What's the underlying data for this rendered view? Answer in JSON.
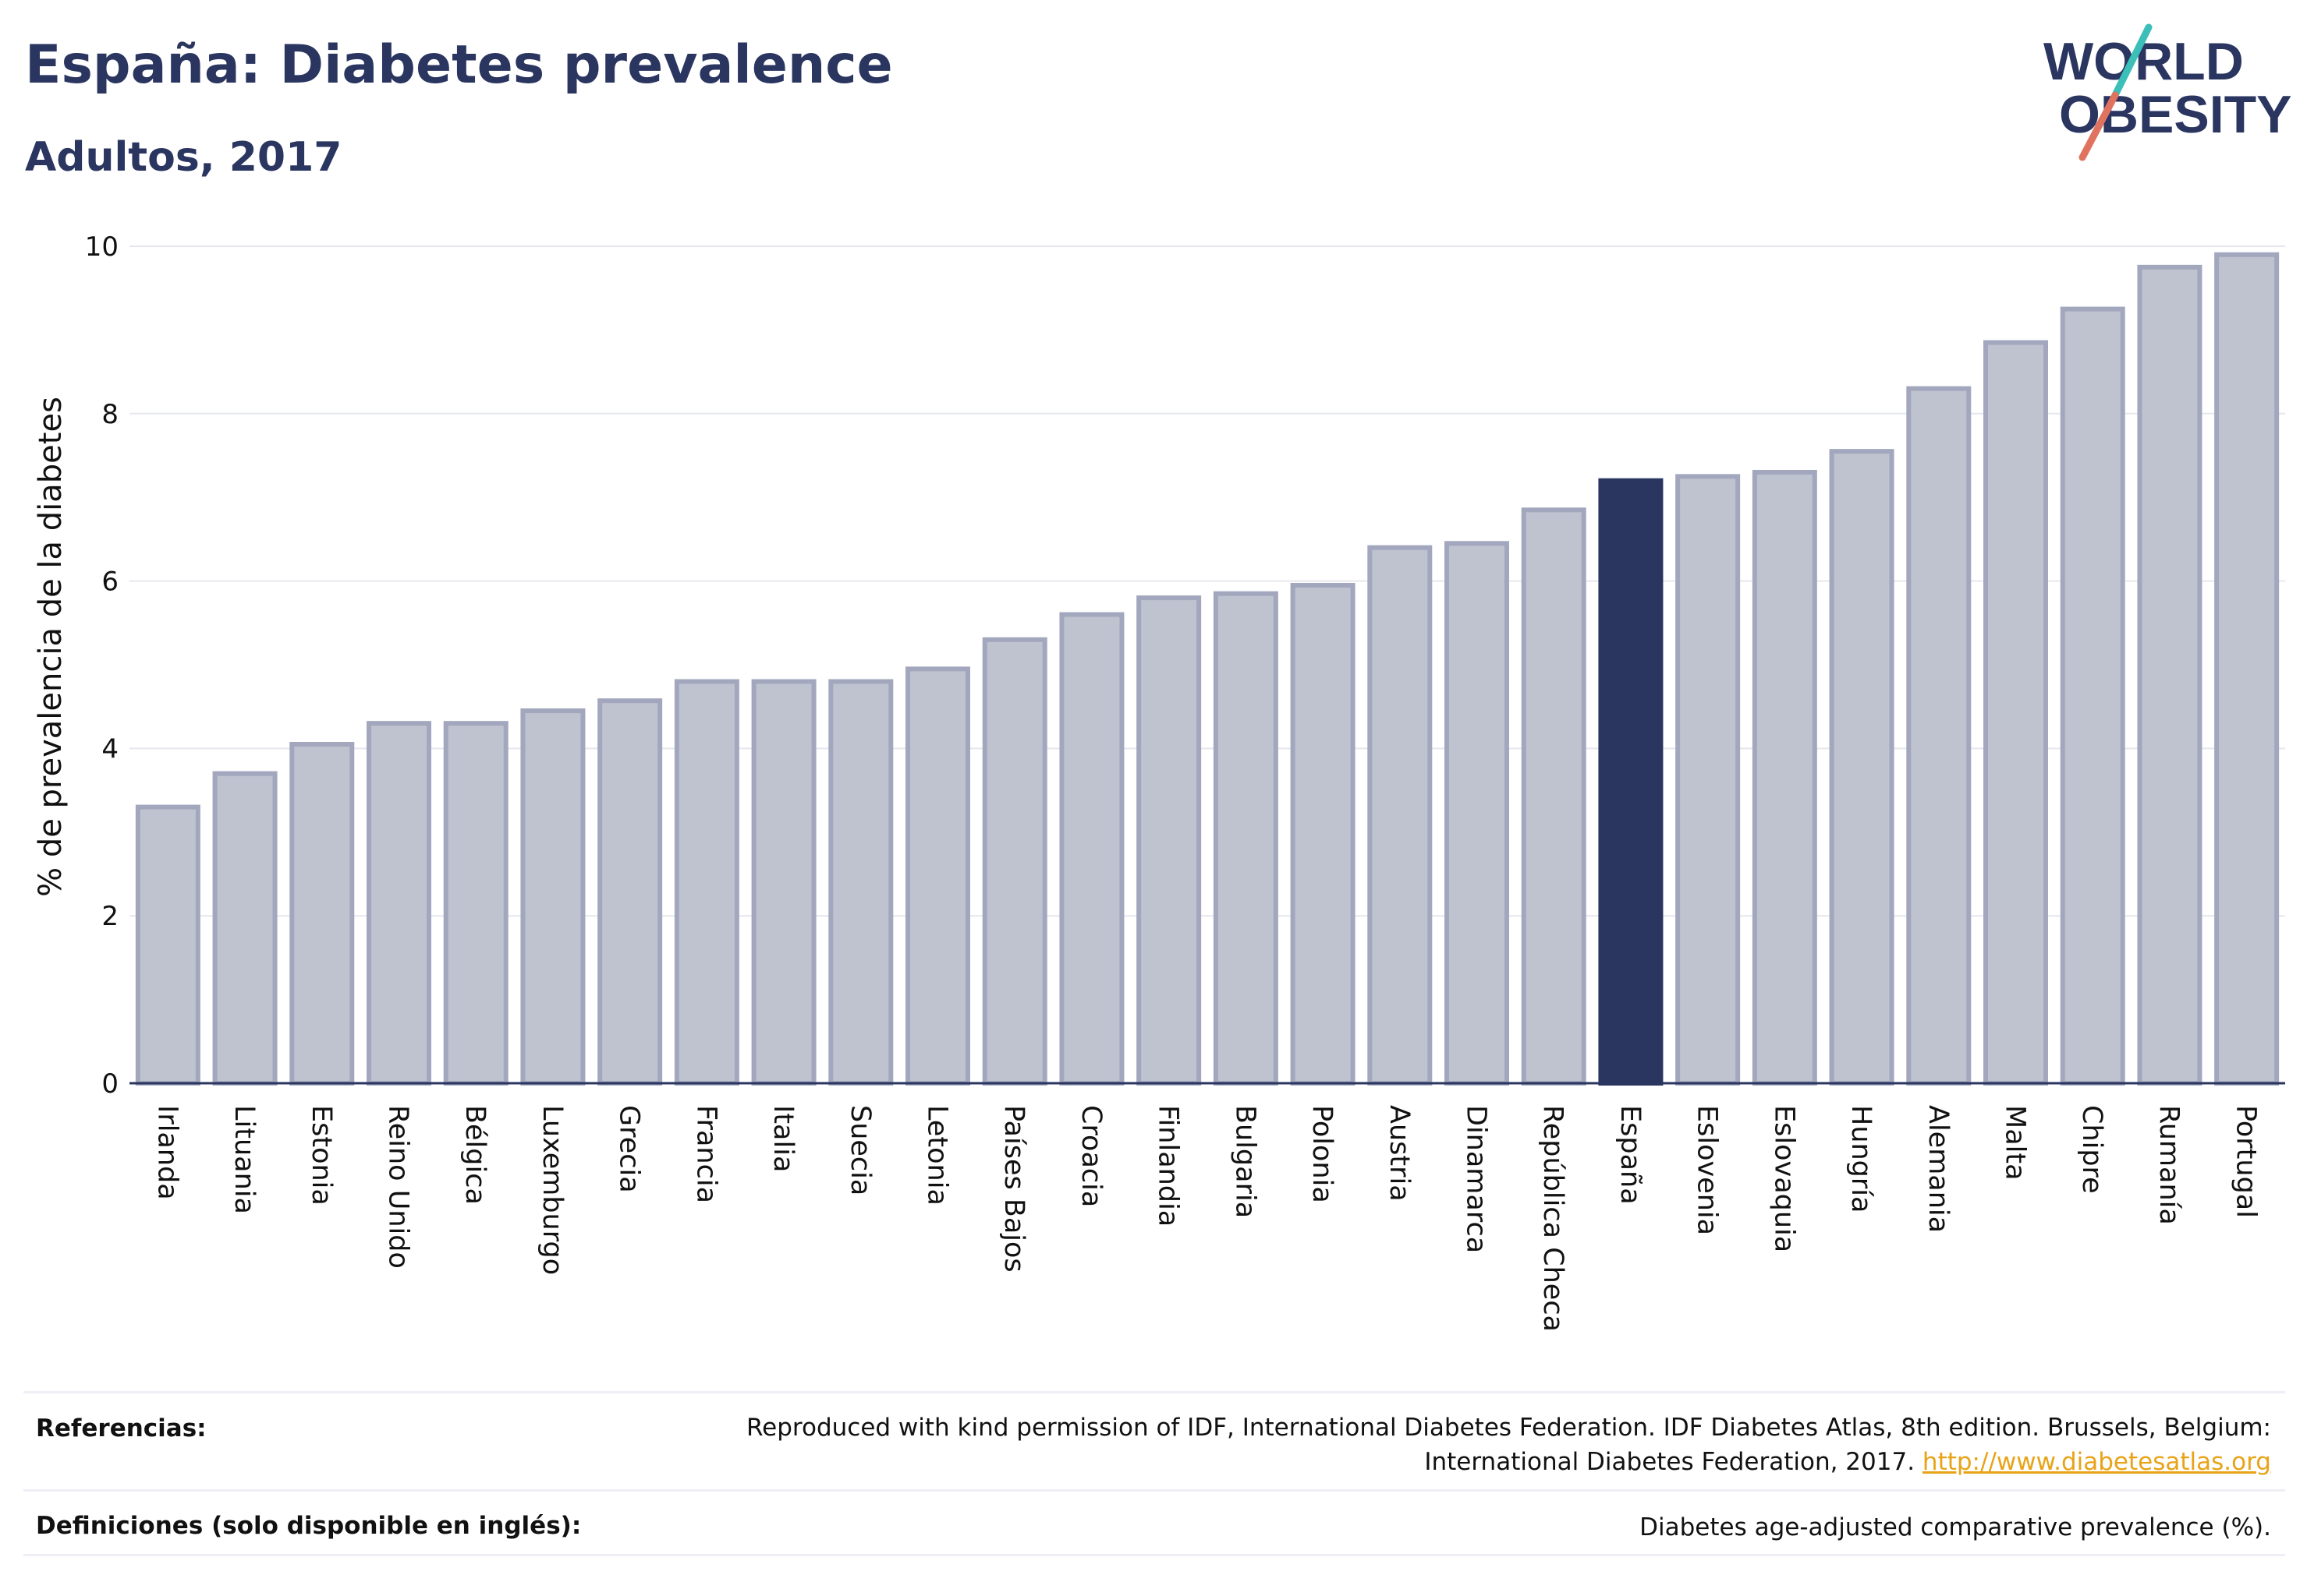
{
  "header": {
    "title": "España: Diabetes prevalence",
    "subtitle": "Adultos, 2017"
  },
  "logo": {
    "line1": "WORLD",
    "line2": "OBESITY",
    "colors": {
      "text": "#2a3560",
      "slash_top": "#3bbfb8",
      "slash_bottom": "#e0735f"
    }
  },
  "colors": {
    "bar_default": "#bfc2cf",
    "bar_default_stroke": "#a2a7bd",
    "bar_highlight": "#2a3560",
    "grid": "#e6e7ee",
    "axis": "#2a3560"
  },
  "chart_data": {
    "type": "bar",
    "title": "España: Diabetes prevalence",
    "subtitle": "Adultos, 2017",
    "xlabel": "",
    "ylabel": "% de prevalencia de la diabetes",
    "ylim": [
      0,
      10
    ],
    "yticks": [
      0,
      2,
      4,
      6,
      8,
      10
    ],
    "grid": true,
    "highlight": "España",
    "categories": [
      "Irlanda",
      "Lituania",
      "Estonia",
      "Reino Unido",
      "Bélgica",
      "Luxemburgo",
      "Grecia",
      "Francia",
      "Italia",
      "Suecia",
      "Letonia",
      "Países Bajos",
      "Croacia",
      "Finlandia",
      "Bulgaria",
      "Polonia",
      "Austria",
      "Dinamarca",
      "República Checa",
      "España",
      "Eslovenia",
      "Eslovaquia",
      "Hungría",
      "Alemania",
      "Malta",
      "Chipre",
      "Rumanía",
      "Portugal"
    ],
    "values": [
      3.3,
      3.7,
      4.05,
      4.3,
      4.3,
      4.45,
      4.57,
      4.8,
      4.8,
      4.8,
      4.95,
      5.3,
      5.6,
      5.8,
      5.85,
      5.95,
      6.4,
      6.45,
      6.85,
      7.2,
      7.25,
      7.3,
      7.55,
      8.3,
      8.85,
      9.25,
      9.75,
      9.9
    ]
  },
  "footer": {
    "references_label": "Referencias:",
    "references_text": "Reproduced with kind permission of IDF, International Diabetes Federation. IDF Diabetes Atlas, 8th edition. Brussels, Belgium: International Diabetes Federation, 2017.",
    "references_link": "http://www.diabetesatlas.org",
    "definitions_label": "Definiciones (solo disponible en inglés):",
    "definitions_text": "Diabetes age-adjusted comparative prevalence (%)."
  }
}
